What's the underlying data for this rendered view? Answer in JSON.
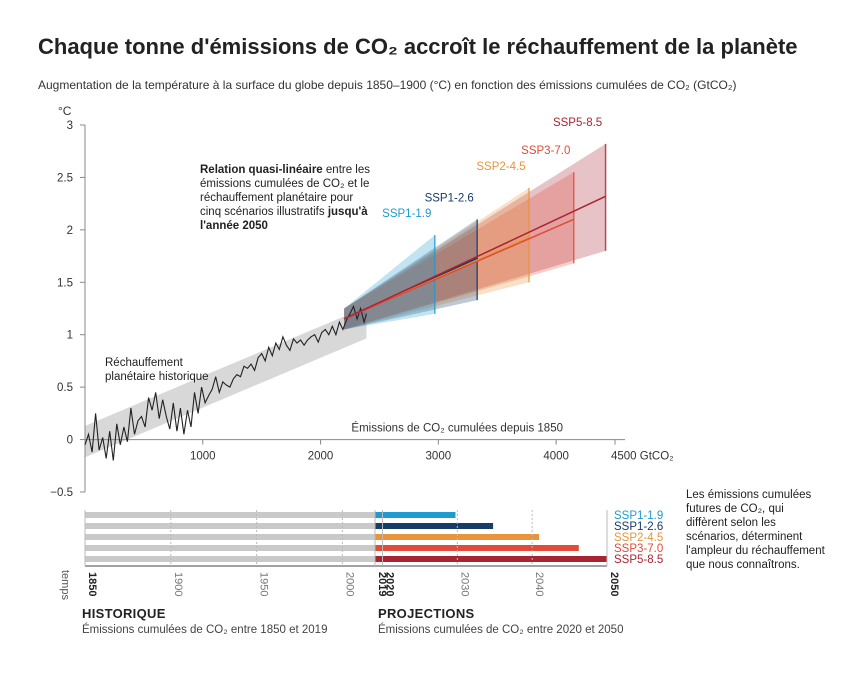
{
  "title": "Chaque tonne d'émissions de CO₂ accroît le réchauffement de la planète",
  "subtitle": "Augmentation de la température à la surface du globe depuis 1850–1900 (°C) en fonction des émissions cumulées de CO₂ (GtCO₂)",
  "chart_data": {
    "type": "line",
    "title": "Chaque tonne d'émissions de CO₂ accroît le réchauffement de la planète",
    "ylabel": "°C",
    "xlabel": "Émissions de CO₂ cumulées depuis 1850",
    "x_unit": "4500 GtCO₂",
    "xlim": [
      0,
      4500
    ],
    "ylim": [
      -0.5,
      3
    ],
    "x_ticks": [
      "1000",
      "2000",
      "3000",
      "4000"
    ],
    "y_ticks": [
      "3",
      "2.5",
      "2",
      "1.5",
      "1",
      "0.5",
      "0",
      "−0.5"
    ],
    "historical": {
      "label": "Réchauffement planétaire historique",
      "x": [
        0,
        30,
        60,
        90,
        120,
        150,
        180,
        210,
        240,
        270,
        300,
        330,
        360,
        390,
        420,
        450,
        480,
        510,
        540,
        570,
        600,
        630,
        660,
        690,
        720,
        750,
        780,
        810,
        840,
        870,
        900,
        930,
        960,
        990,
        1020,
        1050,
        1080,
        1110,
        1140,
        1170,
        1200,
        1230,
        1260,
        1290,
        1320,
        1350,
        1380,
        1410,
        1440,
        1470,
        1500,
        1530,
        1560,
        1590,
        1620,
        1650,
        1680,
        1710,
        1740,
        1770,
        1800,
        1830,
        1860,
        1890,
        1920,
        1950,
        1980,
        2010,
        2040,
        2070,
        2100,
        2130,
        2160,
        2190,
        2220,
        2250,
        2280,
        2310,
        2340,
        2370,
        2390
      ],
      "y": [
        -0.05,
        0.05,
        -0.12,
        0.25,
        -0.1,
        0.02,
        -0.18,
        0.08,
        -0.2,
        0.15,
        -0.05,
        0.12,
        -0.02,
        0.3,
        0.05,
        0.18,
        0.22,
        0.12,
        0.4,
        0.28,
        0.45,
        0.2,
        0.38,
        0.22,
        0.1,
        0.35,
        0.08,
        0.3,
        0.05,
        0.28,
        0.12,
        0.45,
        0.25,
        0.5,
        0.35,
        0.42,
        0.48,
        0.6,
        0.45,
        0.55,
        0.52,
        0.5,
        0.58,
        0.62,
        0.6,
        0.7,
        0.68,
        0.72,
        0.66,
        0.78,
        0.82,
        0.75,
        0.88,
        0.8,
        0.92,
        0.86,
        0.98,
        0.9,
        0.85,
        0.96,
        0.92,
        0.95,
        0.9,
        0.95,
        0.98,
        1.0,
        0.93,
        1.02,
        1.05,
        1.0,
        1.08,
        1.0,
        1.12,
        1.05,
        1.14,
        1.2,
        1.27,
        1.15,
        1.25,
        1.12,
        1.2
      ]
    },
    "scenarios": [
      {
        "name": "SSP1-1.9",
        "color": "#1f9bcf",
        "x_end": 2970,
        "y_start": 1.15,
        "y_end": 1.55,
        "band_end": [
          1.2,
          1.95
        ]
      },
      {
        "name": "SSP1-2.6",
        "color": "#173c66",
        "x_end": 3330,
        "y_start": 1.15,
        "y_end": 1.73,
        "band_end": [
          1.33,
          2.1
        ]
      },
      {
        "name": "SSP2-4.5",
        "color": "#e8943a",
        "x_end": 3770,
        "y_start": 1.15,
        "y_end": 1.93,
        "band_end": [
          1.5,
          2.4
        ]
      },
      {
        "name": "SSP3-7.0",
        "color": "#e04b3a",
        "x_end": 4150,
        "y_start": 1.15,
        "y_end": 2.1,
        "band_end": [
          1.68,
          2.55
        ]
      },
      {
        "name": "SSP5-8.5",
        "color": "#a92432",
        "x_end": 4420,
        "y_start": 1.15,
        "y_end": 2.32,
        "band_end": [
          1.8,
          2.82
        ]
      }
    ],
    "annotation": {
      "bold1": "Relation quasi-linéaire",
      "text1": " entre les émissions cumulées de CO₂ et le réchauffement planétaire pour cinq scénarios illustratifs ",
      "bold2": "jusqu'à l'année 2050"
    }
  },
  "timeline": {
    "axis_label": "temps",
    "years": [
      "1850",
      "1900",
      "1950",
      "2000",
      "2019",
      "2020",
      "2030",
      "2040",
      "2050"
    ],
    "historique_title": "HISTORIQUE",
    "historique_sub": "Émissions cumulées de CO₂ entre 1850 et 2019",
    "projections_title": "PROJECTIONS",
    "projections_sub": "Émissions cumulées de CO₂ entre 2020 et 2050"
  },
  "side_note": "Les émissions cumulées futures de CO₂, qui diffèrent selon les scénarios, déterminent l'ampleur du réchauffement que nous connaîtrons."
}
